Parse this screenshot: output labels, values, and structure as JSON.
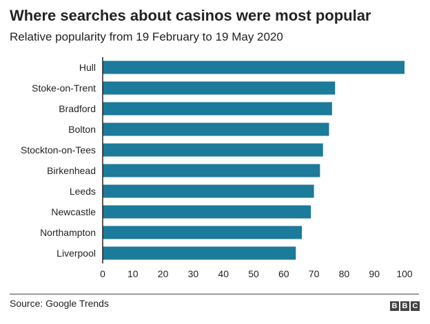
{
  "chart_data": {
    "type": "bar",
    "orientation": "horizontal",
    "title": "Where searches about casinos were most popular",
    "subtitle": "Relative popularity from 19 February to 19 May 2020",
    "categories": [
      "Hull",
      "Stoke-on-Trent",
      "Bradford",
      "Bolton",
      "Stockton-on-Tees",
      "Birkenhead",
      "Leeds",
      "Newcastle",
      "Northampton",
      "Liverpool"
    ],
    "values": [
      100,
      77,
      76,
      75,
      73,
      72,
      70,
      69,
      66,
      64
    ],
    "xlim": [
      0,
      100
    ],
    "xticks": [
      "0",
      "10",
      "20",
      "30",
      "40",
      "50",
      "60",
      "70",
      "80",
      "90",
      "100"
    ],
    "grid": false,
    "bar_color": "#1c7a9a"
  },
  "source": "Source: Google Trends",
  "logo_letters": [
    "B",
    "B",
    "C"
  ]
}
